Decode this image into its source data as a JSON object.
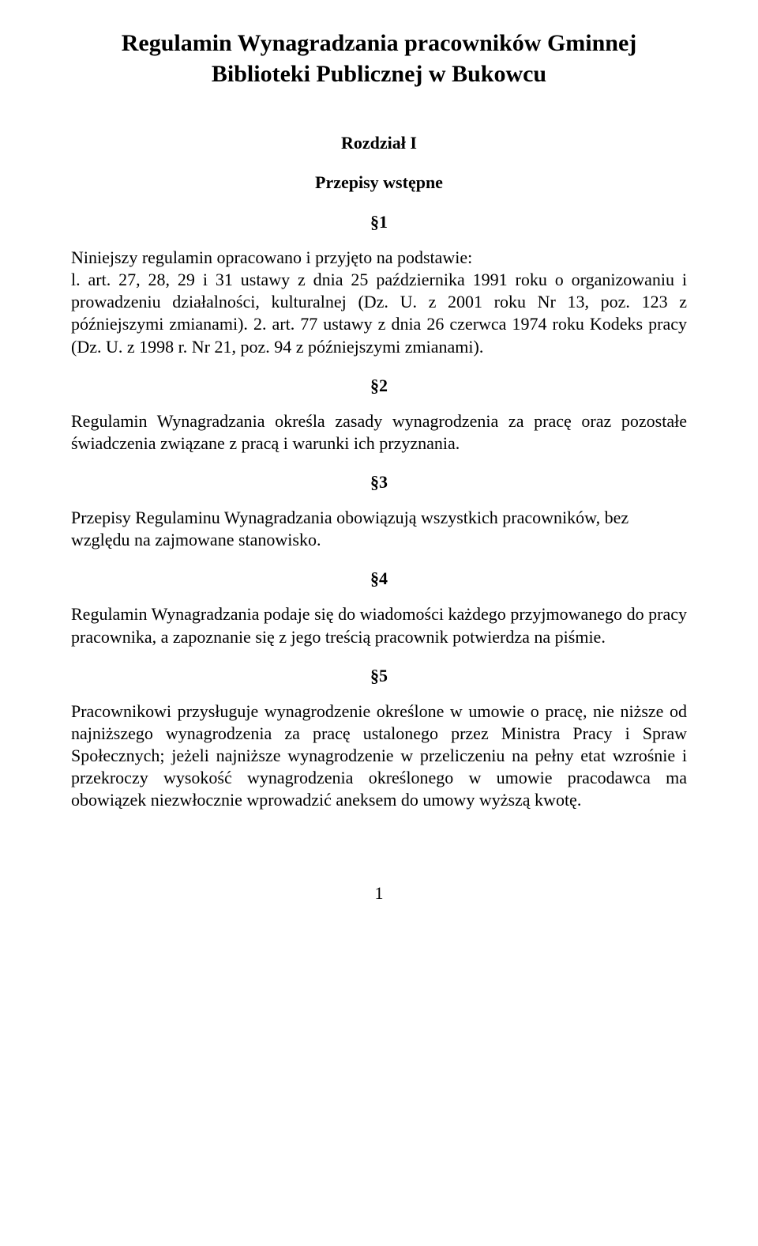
{
  "title_line1": "Regulamin Wynagradzania pracowników Gminnej",
  "title_line2": "Biblioteki Publicznej w Bukowcu",
  "chapter": "Rozdział I",
  "subchapter": "Przepisy wstępne",
  "sec1": "§1",
  "sec1_intro": "Niniejszy regulamin opracowano i przyjęto na podstawie:",
  "sec1_body": "l. art. 27, 28, 29 i 31 ustawy z dnia 25 października 1991 roku o organizowaniu i prowadzeniu działalności, kulturalnej (Dz. U. z 2001 roku Nr 13, poz. 123 z późniejszymi zmianami). 2. art. 77 ustawy z dnia 26 czerwca 1974 roku Kodeks pracy (Dz. U. z 1998 r. Nr 21, poz. 94 z późniejszymi zmianami).",
  "sec2": "§2",
  "sec2_body": "Regulamin Wynagradzania określa zasady wynagrodzenia za pracę oraz pozostałe świadczenia związane z pracą i warunki ich przyznania.",
  "sec3": "§3",
  "sec3_body": "Przepisy Regulaminu Wynagradzania obowiązują wszystkich pracowników, bez względu na zajmowane stanowisko.",
  "sec4": "§4",
  "sec4_body": "Regulamin Wynagradzania podaje się do wiadomości każdego przyjmowanego do pracy pracownika, a zapoznanie się z jego treścią pracownik potwierdza na piśmie.",
  "sec5": "§5",
  "sec5_body": "Pracownikowi przysługuje wynagrodzenie określone w umowie o pracę, nie niższe od najniższego wynagrodzenia za pracę ustalonego przez Ministra Pracy i Spraw Społecznych; jeżeli najniższe wynagrodzenie w przeliczeniu na pełny etat wzrośnie i przekroczy wysokość wynagrodzenia określonego w umowie pracodawca ma obowiązek niezwłocznie wprowadzić aneksem do umowy wyższą kwotę.",
  "page_number": "1"
}
